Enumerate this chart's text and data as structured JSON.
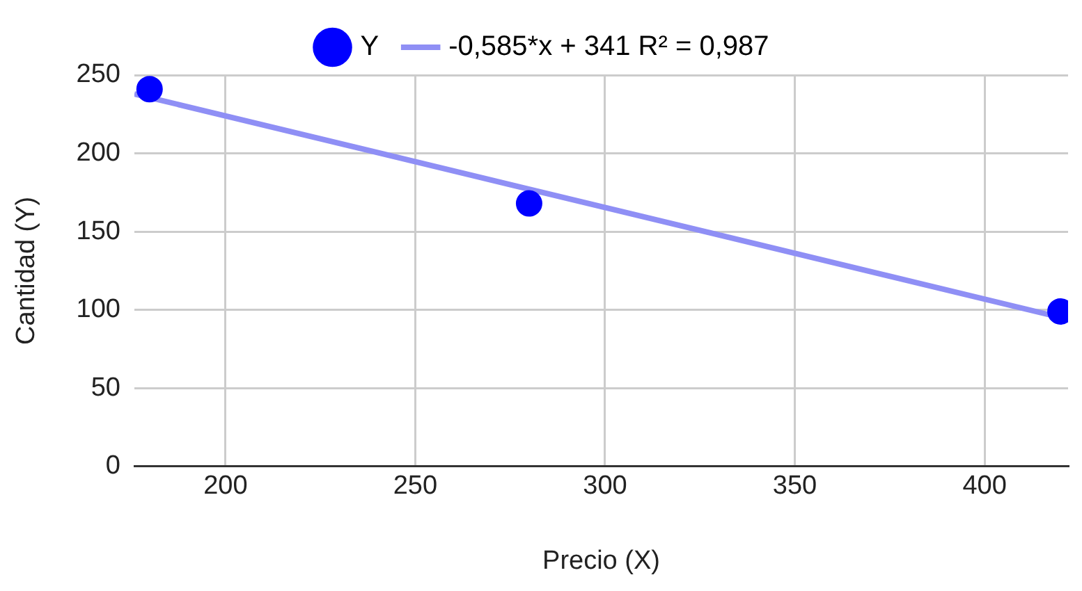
{
  "chart_data": {
    "type": "scatter",
    "xlabel": "Precio (X)",
    "ylabel": "Cantidad (Y)",
    "x": [
      180,
      280,
      420
    ],
    "series": [
      {
        "name": "Y",
        "color": "#0000ff",
        "values": [
          241,
          168,
          99
        ],
        "marker": "circle"
      },
      {
        "name": "-0,585*x + 341 R² = 0,987",
        "type": "line",
        "color": "#8f8ff5",
        "x": [
          176,
          422
        ],
        "values": [
          238,
          94
        ],
        "marker": "none"
      }
    ],
    "xlim": [
      176,
      422
    ],
    "xticks": [
      200,
      250,
      300,
      350,
      400
    ],
    "ylim": [
      0,
      250
    ],
    "yticks": [
      0,
      50,
      100,
      150,
      200,
      250
    ],
    "grid": true,
    "legend": "top"
  }
}
